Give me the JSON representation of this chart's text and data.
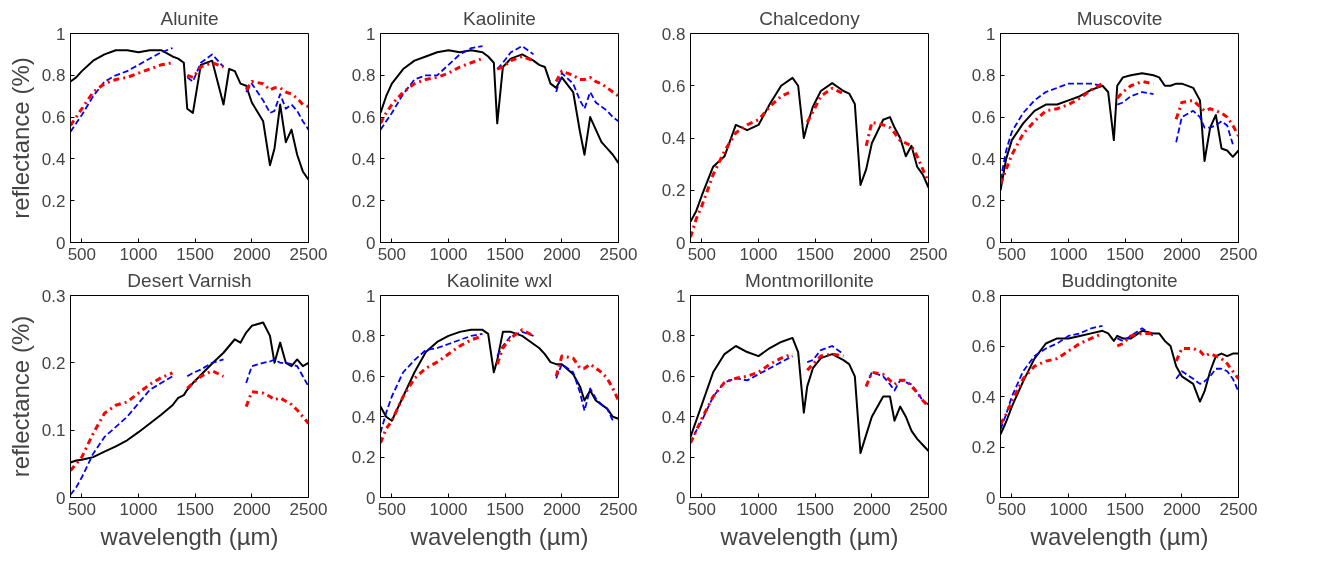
{
  "chart_data": [
    {
      "type": "line",
      "title": "Alunite",
      "ylabel": "reflectance (%)",
      "xlim": [
        400,
        2500
      ],
      "xticks": [
        500,
        1000,
        1500,
        2000,
        2500
      ],
      "ylim": [
        0,
        1
      ],
      "yticks": [
        0,
        0.2,
        0.4,
        0.6,
        0.8,
        1
      ],
      "grid": false,
      "marker": "none",
      "x": [
        400,
        450,
        500,
        600,
        700,
        800,
        900,
        1000,
        1100,
        1200,
        1300,
        1350,
        1400,
        1430,
        1480,
        1550,
        1650,
        1750,
        1800,
        1850,
        1900,
        1950,
        2000,
        2100,
        2160,
        2200,
        2250,
        2300,
        2350,
        2400,
        2450,
        2500
      ],
      "series": [
        {
          "color": "#000000",
          "line_style": "solid",
          "values": [
            0.77,
            0.79,
            0.82,
            0.87,
            0.9,
            0.92,
            0.92,
            0.91,
            0.92,
            0.92,
            0.89,
            0.88,
            0.86,
            0.64,
            0.62,
            0.85,
            0.87,
            0.66,
            0.83,
            0.82,
            0.76,
            0.75,
            0.67,
            0.58,
            0.37,
            0.45,
            0.66,
            0.48,
            0.54,
            0.42,
            0.34,
            0.3
          ]
        },
        {
          "color": "#0000ff",
          "line_style": "dashed",
          "values": [
            0.53,
            0.57,
            0.61,
            0.7,
            0.77,
            0.8,
            0.82,
            0.85,
            0.88,
            0.91,
            0.93,
            null,
            null,
            0.79,
            0.77,
            0.86,
            0.9,
            0.84,
            null,
            null,
            null,
            0.72,
            0.76,
            0.68,
            0.62,
            0.63,
            0.71,
            0.64,
            0.66,
            0.63,
            0.58,
            0.54
          ]
        },
        {
          "color": "#ff0000",
          "line_style": "dashdot",
          "values": [
            0.56,
            0.6,
            0.64,
            0.72,
            0.76,
            0.78,
            0.79,
            0.81,
            0.83,
            0.85,
            0.86,
            null,
            null,
            0.8,
            0.79,
            0.84,
            0.86,
            0.84,
            null,
            null,
            null,
            0.73,
            0.77,
            0.76,
            0.73,
            0.74,
            0.74,
            0.72,
            0.71,
            0.69,
            0.66,
            0.65
          ]
        }
      ]
    },
    {
      "type": "line",
      "title": "Kaolinite",
      "xlim": [
        400,
        2500
      ],
      "xticks": [
        500,
        1000,
        1500,
        2000,
        2500
      ],
      "ylim": [
        0,
        1
      ],
      "yticks": [
        0,
        0.2,
        0.4,
        0.6,
        0.8,
        1
      ],
      "grid": false,
      "marker": "none",
      "x": [
        400,
        450,
        500,
        600,
        700,
        800,
        900,
        1000,
        1100,
        1200,
        1300,
        1350,
        1400,
        1430,
        1480,
        1550,
        1650,
        1750,
        1800,
        1850,
        1900,
        1950,
        2000,
        2100,
        2160,
        2200,
        2250,
        2300,
        2350,
        2400,
        2450,
        2500
      ],
      "series": [
        {
          "color": "#000000",
          "line_style": "solid",
          "values": [
            0.62,
            0.7,
            0.76,
            0.83,
            0.87,
            0.89,
            0.91,
            0.92,
            0.91,
            0.92,
            0.91,
            0.89,
            0.86,
            0.57,
            0.84,
            0.88,
            0.9,
            0.87,
            0.85,
            0.84,
            0.76,
            0.74,
            0.79,
            0.72,
            0.53,
            0.42,
            0.6,
            0.54,
            0.48,
            0.45,
            0.42,
            0.38
          ]
        },
        {
          "color": "#0000ff",
          "line_style": "dashed",
          "values": [
            0.54,
            0.58,
            0.62,
            0.71,
            0.78,
            0.8,
            0.8,
            0.85,
            0.9,
            0.93,
            0.94,
            null,
            null,
            0.83,
            0.86,
            0.91,
            0.94,
            0.9,
            null,
            null,
            null,
            0.72,
            0.81,
            0.76,
            0.68,
            0.64,
            0.72,
            0.67,
            0.65,
            0.63,
            0.6,
            0.58
          ]
        },
        {
          "color": "#ff0000",
          "line_style": "dashdot",
          "values": [
            0.57,
            0.62,
            0.66,
            0.72,
            0.76,
            0.78,
            0.79,
            0.81,
            0.84,
            0.86,
            0.88,
            null,
            null,
            0.83,
            0.84,
            0.87,
            0.89,
            0.87,
            null,
            null,
            null,
            0.77,
            0.82,
            0.8,
            0.78,
            0.78,
            0.79,
            0.77,
            0.76,
            0.74,
            0.72,
            0.7
          ]
        }
      ]
    },
    {
      "type": "line",
      "title": "Chalcedony",
      "xlim": [
        400,
        2500
      ],
      "xticks": [
        500,
        1000,
        1500,
        2000,
        2500
      ],
      "ylim": [
        0,
        0.8
      ],
      "yticks": [
        0,
        0.2,
        0.4,
        0.6,
        0.8
      ],
      "grid": false,
      "marker": "none",
      "x": [
        400,
        450,
        500,
        600,
        700,
        800,
        900,
        1000,
        1100,
        1200,
        1300,
        1350,
        1400,
        1430,
        1480,
        1550,
        1650,
        1750,
        1800,
        1850,
        1900,
        1950,
        2000,
        2100,
        2160,
        2200,
        2250,
        2300,
        2350,
        2400,
        2450,
        2500
      ],
      "series": [
        {
          "color": "#000000",
          "line_style": "solid",
          "values": [
            0.08,
            0.12,
            0.18,
            0.29,
            0.33,
            0.45,
            0.43,
            0.45,
            0.53,
            0.6,
            0.63,
            0.6,
            0.4,
            0.45,
            0.52,
            0.58,
            0.61,
            0.58,
            0.57,
            0.53,
            0.22,
            0.28,
            0.38,
            0.47,
            0.48,
            0.44,
            0.4,
            0.33,
            0.37,
            0.29,
            0.26,
            0.21
          ]
        },
        {
          "color": "#ff0000",
          "line_style": "dashdot",
          "values": [
            0.02,
            0.09,
            0.14,
            0.26,
            0.35,
            0.42,
            0.45,
            0.47,
            0.52,
            0.56,
            0.58,
            null,
            null,
            0.46,
            0.5,
            0.56,
            0.59,
            0.57,
            null,
            null,
            null,
            0.37,
            0.46,
            0.45,
            0.44,
            0.42,
            0.39,
            0.38,
            0.37,
            0.33,
            0.28,
            0.23
          ]
        }
      ]
    },
    {
      "type": "line",
      "title": "Muscovite",
      "xlim": [
        400,
        2500
      ],
      "xticks": [
        500,
        1000,
        1500,
        2000,
        2500
      ],
      "ylim": [
        0,
        1
      ],
      "yticks": [
        0,
        0.2,
        0.4,
        0.6,
        0.8,
        1
      ],
      "grid": false,
      "marker": "none",
      "x": [
        400,
        450,
        500,
        600,
        700,
        800,
        900,
        1000,
        1100,
        1200,
        1300,
        1350,
        1400,
        1430,
        1480,
        1550,
        1650,
        1750,
        1800,
        1850,
        1900,
        1950,
        2000,
        2100,
        2160,
        2200,
        2250,
        2300,
        2350,
        2400,
        2450,
        2500
      ],
      "series": [
        {
          "color": "#000000",
          "line_style": "solid",
          "values": [
            0.25,
            0.4,
            0.49,
            0.57,
            0.63,
            0.66,
            0.66,
            0.68,
            0.7,
            0.73,
            0.75,
            0.72,
            0.49,
            0.75,
            0.79,
            0.8,
            0.81,
            0.8,
            0.79,
            0.75,
            0.75,
            0.76,
            0.76,
            0.74,
            0.68,
            0.39,
            0.55,
            0.61,
            0.45,
            0.44,
            0.41,
            0.44
          ]
        },
        {
          "color": "#0000ff",
          "line_style": "dashed",
          "values": [
            0.3,
            0.44,
            0.53,
            0.62,
            0.68,
            0.72,
            0.74,
            0.76,
            0.76,
            0.76,
            0.75,
            null,
            null,
            0.66,
            0.67,
            0.7,
            0.72,
            0.71,
            null,
            null,
            null,
            0.48,
            0.6,
            0.63,
            0.6,
            0.55,
            0.55,
            0.56,
            0.58,
            0.56,
            0.47,
            null
          ]
        },
        {
          "color": "#ff0000",
          "line_style": "dashdot",
          "values": [
            0.28,
            0.35,
            0.42,
            0.52,
            0.58,
            0.63,
            0.64,
            0.66,
            0.69,
            0.73,
            0.76,
            null,
            null,
            0.69,
            0.72,
            0.75,
            0.77,
            0.76,
            null,
            null,
            null,
            0.59,
            0.67,
            0.68,
            0.65,
            0.63,
            0.64,
            0.63,
            0.62,
            0.6,
            0.56,
            0.51
          ]
        }
      ]
    },
    {
      "type": "line",
      "title": "Desert Varnish",
      "ylabel": "reflectance (%)",
      "xlabel": "wavelength (µm)",
      "xlim": [
        400,
        2500
      ],
      "xticks": [
        500,
        1000,
        1500,
        2000,
        2500
      ],
      "ylim": [
        0,
        0.3
      ],
      "yticks": [
        0,
        0.1,
        0.2,
        0.3
      ],
      "grid": false,
      "marker": "none",
      "x": [
        400,
        450,
        500,
        600,
        700,
        800,
        900,
        1000,
        1100,
        1200,
        1300,
        1350,
        1400,
        1430,
        1480,
        1550,
        1650,
        1750,
        1800,
        1850,
        1900,
        1950,
        2000,
        2100,
        2160,
        2200,
        2250,
        2300,
        2350,
        2400,
        2450,
        2500
      ],
      "series": [
        {
          "color": "#000000",
          "line_style": "solid",
          "values": [
            0.052,
            0.055,
            0.056,
            0.06,
            0.068,
            0.076,
            0.085,
            0.097,
            0.11,
            0.123,
            0.137,
            0.148,
            0.152,
            0.16,
            0.17,
            0.182,
            0.199,
            0.215,
            0.225,
            0.235,
            0.23,
            0.245,
            0.255,
            0.26,
            0.24,
            0.2,
            0.23,
            0.2,
            0.195,
            0.205,
            0.195,
            0.2
          ]
        },
        {
          "color": "#0000ff",
          "line_style": "dashed",
          "values": [
            0.004,
            0.015,
            0.03,
            0.065,
            0.09,
            0.105,
            0.12,
            0.14,
            0.16,
            0.17,
            0.18,
            null,
            null,
            0.18,
            0.185,
            0.19,
            0.2,
            0.205,
            null,
            null,
            null,
            0.17,
            0.195,
            0.2,
            0.202,
            0.205,
            0.2,
            0.2,
            0.198,
            0.195,
            0.18,
            0.165
          ]
        },
        {
          "color": "#ff0000",
          "line_style": "dashdot",
          "values": [
            0.04,
            0.05,
            0.06,
            0.095,
            0.125,
            0.137,
            0.142,
            0.155,
            0.168,
            0.178,
            0.185,
            null,
            null,
            0.162,
            0.17,
            0.18,
            0.188,
            0.18,
            null,
            null,
            null,
            0.135,
            0.157,
            0.155,
            0.15,
            0.145,
            0.148,
            0.143,
            0.138,
            0.13,
            0.12,
            0.11
          ]
        }
      ]
    },
    {
      "type": "line",
      "title": "Kaolinite wxl",
      "xlabel": "wavelength (µm)",
      "xlim": [
        400,
        2500
      ],
      "xticks": [
        500,
        1000,
        1500,
        2000,
        2500
      ],
      "ylim": [
        0,
        1
      ],
      "yticks": [
        0,
        0.2,
        0.4,
        0.6,
        0.8,
        1
      ],
      "grid": false,
      "marker": "none",
      "x": [
        400,
        450,
        500,
        600,
        700,
        800,
        900,
        1000,
        1100,
        1200,
        1300,
        1350,
        1400,
        1430,
        1480,
        1550,
        1650,
        1750,
        1800,
        1850,
        1900,
        1950,
        2000,
        2100,
        2160,
        2200,
        2250,
        2300,
        2350,
        2400,
        2450,
        2500
      ],
      "series": [
        {
          "color": "#000000",
          "line_style": "solid",
          "values": [
            0.45,
            0.4,
            0.38,
            0.5,
            0.62,
            0.72,
            0.77,
            0.8,
            0.82,
            0.83,
            0.83,
            0.81,
            0.62,
            0.68,
            0.82,
            0.82,
            0.8,
            0.76,
            0.74,
            0.71,
            0.67,
            0.66,
            0.66,
            0.61,
            0.55,
            0.48,
            0.53,
            0.48,
            0.46,
            0.44,
            0.4,
            0.39
          ]
        },
        {
          "color": "#0000ff",
          "line_style": "dashed",
          "values": [
            0.32,
            0.42,
            0.5,
            0.62,
            0.68,
            0.73,
            0.74,
            0.76,
            0.78,
            0.8,
            0.81,
            null,
            null,
            0.7,
            0.75,
            0.8,
            0.82,
            0.8,
            null,
            null,
            null,
            0.59,
            0.66,
            0.62,
            0.52,
            0.43,
            0.54,
            0.49,
            0.46,
            0.44,
            0.38,
            null
          ]
        },
        {
          "color": "#ff0000",
          "line_style": "dashdot",
          "values": [
            0.27,
            0.34,
            0.38,
            0.5,
            0.59,
            0.64,
            0.67,
            0.71,
            0.75,
            0.78,
            0.8,
            null,
            null,
            0.66,
            0.74,
            0.79,
            0.83,
            0.8,
            null,
            null,
            null,
            0.6,
            0.7,
            0.69,
            0.64,
            0.64,
            0.66,
            0.64,
            0.62,
            0.59,
            0.54,
            0.48
          ]
        }
      ]
    },
    {
      "type": "line",
      "title": "Montmorillonite",
      "xlabel": "wavelength (µm)",
      "xlim": [
        400,
        2500
      ],
      "xticks": [
        500,
        1000,
        1500,
        2000,
        2500
      ],
      "ylim": [
        0,
        1
      ],
      "yticks": [
        0,
        0.2,
        0.4,
        0.6,
        0.8,
        1
      ],
      "grid": false,
      "marker": "none",
      "x": [
        400,
        450,
        500,
        600,
        700,
        800,
        900,
        1000,
        1100,
        1200,
        1300,
        1350,
        1400,
        1430,
        1480,
        1550,
        1650,
        1750,
        1800,
        1850,
        1900,
        1950,
        2000,
        2100,
        2160,
        2200,
        2250,
        2300,
        2350,
        2400,
        2450,
        2500
      ],
      "series": [
        {
          "color": "#000000",
          "line_style": "solid",
          "values": [
            0.3,
            0.38,
            0.46,
            0.62,
            0.71,
            0.75,
            0.72,
            0.7,
            0.74,
            0.77,
            0.79,
            0.72,
            0.42,
            0.55,
            0.64,
            0.69,
            0.71,
            0.68,
            0.66,
            0.6,
            0.22,
            0.31,
            0.4,
            0.5,
            0.5,
            0.38,
            0.45,
            0.4,
            0.33,
            0.29,
            0.26,
            0.23
          ]
        },
        {
          "color": "#0000ff",
          "line_style": "dashed",
          "values": [
            0.27,
            0.33,
            0.38,
            0.5,
            0.57,
            0.59,
            0.58,
            0.61,
            0.64,
            0.67,
            0.7,
            null,
            null,
            0.67,
            0.68,
            0.73,
            0.75,
            0.71,
            null,
            null,
            null,
            0.55,
            0.62,
            0.6,
            0.56,
            0.53,
            0.58,
            0.57,
            0.56,
            0.52,
            0.48,
            0.46
          ]
        },
        {
          "color": "#ff0000",
          "line_style": "dashdot",
          "values": [
            0.27,
            0.33,
            0.39,
            0.5,
            0.57,
            0.59,
            0.6,
            0.62,
            0.66,
            0.69,
            0.71,
            null,
            null,
            0.63,
            0.66,
            0.7,
            0.71,
            0.7,
            null,
            null,
            null,
            0.55,
            0.62,
            0.61,
            0.58,
            0.56,
            0.58,
            0.58,
            0.55,
            0.52,
            0.48,
            0.45
          ]
        }
      ]
    },
    {
      "type": "line",
      "title": "Buddingtonite",
      "xlabel": "wavelength (µm)",
      "xlim": [
        400,
        2500
      ],
      "xticks": [
        500,
        1000,
        1500,
        2000,
        2500
      ],
      "ylim": [
        0,
        0.8
      ],
      "yticks": [
        0,
        0.2,
        0.4,
        0.6,
        0.8
      ],
      "grid": false,
      "marker": "none",
      "x": [
        400,
        450,
        500,
        600,
        700,
        800,
        900,
        1000,
        1100,
        1200,
        1300,
        1350,
        1400,
        1430,
        1480,
        1550,
        1650,
        1750,
        1800,
        1850,
        1900,
        1950,
        2000,
        2100,
        2160,
        2200,
        2250,
        2300,
        2350,
        2400,
        2450,
        2500
      ],
      "series": [
        {
          "color": "#000000",
          "line_style": "solid",
          "values": [
            0.25,
            0.3,
            0.36,
            0.46,
            0.55,
            0.61,
            0.63,
            0.63,
            0.64,
            0.65,
            0.66,
            0.65,
            0.62,
            0.64,
            0.63,
            0.63,
            0.66,
            0.65,
            0.65,
            0.62,
            0.6,
            0.52,
            0.48,
            0.45,
            0.38,
            0.42,
            0.5,
            0.56,
            0.57,
            0.56,
            0.57,
            0.57
          ]
        },
        {
          "color": "#0000ff",
          "line_style": "dashed",
          "values": [
            0.27,
            0.33,
            0.4,
            0.5,
            0.56,
            0.59,
            0.61,
            0.64,
            0.65,
            0.67,
            0.68,
            null,
            null,
            0.63,
            0.62,
            0.64,
            0.67,
            0.64,
            null,
            null,
            null,
            0.47,
            0.5,
            0.47,
            0.45,
            0.46,
            0.48,
            0.51,
            0.51,
            0.5,
            0.47,
            0.42
          ]
        },
        {
          "color": "#ff0000",
          "line_style": "dashdot",
          "values": [
            0.29,
            0.33,
            0.38,
            0.47,
            0.52,
            0.54,
            0.55,
            0.58,
            0.61,
            0.63,
            0.65,
            null,
            null,
            0.6,
            0.61,
            0.64,
            0.65,
            0.65,
            null,
            null,
            null,
            0.54,
            0.59,
            0.59,
            0.58,
            0.56,
            0.57,
            0.56,
            0.55,
            0.53,
            0.5,
            0.47
          ]
        }
      ]
    }
  ]
}
